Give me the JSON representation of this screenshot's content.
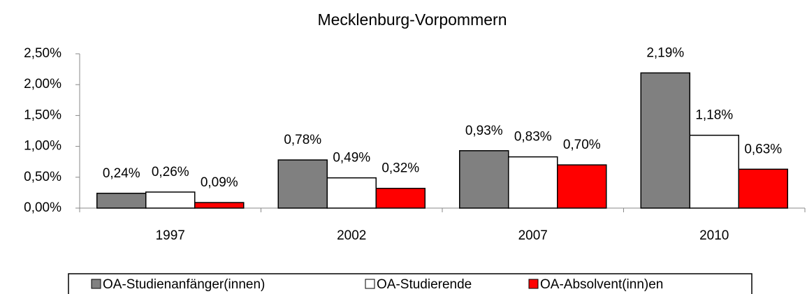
{
  "chart_data": {
    "type": "bar",
    "title": "Mecklenburg-Vorpommern",
    "categories": [
      "1997",
      "2002",
      "2007",
      "2010"
    ],
    "series": [
      {
        "name": "OA-Studienanfänger(innen)",
        "color": "#808080",
        "values": [
          0.24,
          0.78,
          0.93,
          2.19
        ],
        "value_labels": [
          "0,24%",
          "0,78%",
          "0,93%",
          "2,19%"
        ]
      },
      {
        "name": "OA-Studierende",
        "color": "#ffffff",
        "values": [
          0.26,
          0.49,
          0.83,
          1.18
        ],
        "value_labels": [
          "0,26%",
          "0,49%",
          "0,83%",
          "1,18%"
        ]
      },
      {
        "name": "OA-Absolvent(inn)en",
        "color": "#ff0000",
        "values": [
          0.09,
          0.32,
          0.7,
          0.63
        ],
        "value_labels": [
          "0,09%",
          "0,32%",
          "0,70%",
          "0,63%"
        ]
      }
    ],
    "ylim": [
      0,
      2.5
    ],
    "yticks": [
      {
        "value": 0,
        "label": "0,00%"
      },
      {
        "value": 0.5,
        "label": "0,50%"
      },
      {
        "value": 1,
        "label": "1,00%"
      },
      {
        "value": 1.5,
        "label": "1,50%"
      },
      {
        "value": 2,
        "label": "2,00%"
      },
      {
        "value": 2.5,
        "label": "2,50%"
      }
    ],
    "legend": "bottom"
  }
}
